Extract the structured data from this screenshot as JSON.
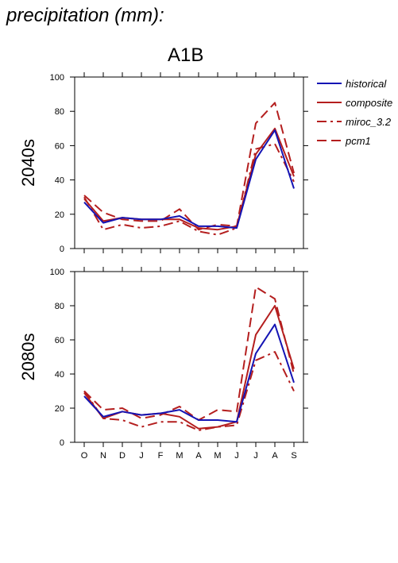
{
  "header": "precipitation (mm):",
  "scenario": "A1B",
  "colors": {
    "historical": "#1414b4",
    "models": "#b41e1e"
  },
  "legend": [
    {
      "name": "historical",
      "dash": "solid",
      "color": "#1414b4"
    },
    {
      "name": "composite",
      "dash": "solid",
      "color": "#b41e1e"
    },
    {
      "name": "miroc_3.2",
      "dash": "dashdot",
      "color": "#b41e1e"
    },
    {
      "name": "pcm1",
      "dash": "dash",
      "color": "#b41e1e"
    }
  ],
  "chart_data": [
    {
      "type": "line",
      "ylabel": "2040s",
      "ylim": [
        0,
        100
      ],
      "yticks": [
        0,
        20,
        40,
        60,
        80,
        100
      ],
      "categories": [
        "O",
        "N",
        "D",
        "J",
        "F",
        "M",
        "A",
        "M",
        "J",
        "J",
        "A",
        "S"
      ],
      "series": [
        {
          "name": "historical",
          "values": [
            27,
            15,
            18,
            17,
            17,
            19,
            13,
            13,
            12,
            52,
            69,
            35
          ]
        },
        {
          "name": "composite",
          "values": [
            29,
            16,
            18,
            17,
            17,
            17,
            12,
            11,
            13,
            55,
            70,
            42
          ]
        },
        {
          "name": "miroc_3.2",
          "values": [
            30,
            11,
            14,
            12,
            13,
            16,
            10,
            8,
            12,
            58,
            61,
            39
          ]
        },
        {
          "name": "pcm1",
          "values": [
            31,
            21,
            17,
            16,
            16,
            23,
            11,
            14,
            13,
            73,
            85,
            44
          ]
        }
      ]
    },
    {
      "type": "line",
      "ylabel": "2080s",
      "ylim": [
        0,
        100
      ],
      "yticks": [
        0,
        20,
        40,
        60,
        80,
        100
      ],
      "categories": [
        "O",
        "N",
        "D",
        "J",
        "F",
        "M",
        "A",
        "M",
        "J",
        "J",
        "A",
        "S"
      ],
      "series": [
        {
          "name": "historical",
          "values": [
            27,
            15,
            18,
            16,
            17,
            19,
            13,
            13,
            12,
            52,
            69,
            35
          ]
        },
        {
          "name": "composite",
          "values": [
            29,
            14,
            18,
            16,
            17,
            15,
            8,
            9,
            12,
            63,
            80,
            43
          ]
        },
        {
          "name": "miroc_3.2",
          "values": [
            30,
            14,
            13,
            9,
            12,
            12,
            7,
            9,
            10,
            48,
            53,
            30
          ]
        },
        {
          "name": "pcm1",
          "values": [
            30,
            19,
            20,
            14,
            16,
            21,
            13,
            19,
            18,
            91,
            84,
            40
          ]
        }
      ]
    }
  ]
}
